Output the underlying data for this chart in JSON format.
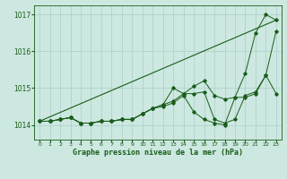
{
  "title": "Graphe pression niveau de la mer (hPa)",
  "background_color": "#cce8e0",
  "grid_color": "#aacfc8",
  "line_color": "#1a5c1a",
  "xlim": [
    -0.5,
    23.5
  ],
  "ylim": [
    1013.6,
    1017.25
  ],
  "xticks": [
    0,
    1,
    2,
    3,
    4,
    5,
    6,
    7,
    8,
    9,
    10,
    11,
    12,
    13,
    14,
    15,
    16,
    17,
    18,
    19,
    20,
    21,
    22,
    23
  ],
  "yticks": [
    1014,
    1015,
    1016,
    1017
  ],
  "series": [
    {
      "x": [
        0,
        1,
        2,
        3,
        4,
        5,
        6,
        7,
        8,
        9,
        10,
        11,
        12,
        13,
        14,
        15,
        16,
        17,
        18,
        19,
        20,
        21,
        22,
        23
      ],
      "y": [
        1014.1,
        1014.1,
        1014.15,
        1014.2,
        1014.05,
        1014.05,
        1014.1,
        1014.1,
        1014.15,
        1014.15,
        1014.3,
        1014.45,
        1014.55,
        1014.65,
        1014.85,
        1015.05,
        1015.2,
        1014.8,
        1014.7,
        1014.75,
        1015.4,
        1016.5,
        1017.0,
        1016.85
      ]
    },
    {
      "x": [
        0,
        1,
        2,
        3,
        4,
        5,
        6,
        7,
        8,
        9,
        10,
        11,
        12,
        13,
        14,
        15,
        16,
        17,
        18,
        19,
        20,
        21,
        22,
        23
      ],
      "y": [
        1014.1,
        1014.1,
        1014.15,
        1014.2,
        1014.05,
        1014.05,
        1014.1,
        1014.1,
        1014.15,
        1014.15,
        1014.3,
        1014.45,
        1014.55,
        1015.0,
        1014.85,
        1014.85,
        1014.9,
        1014.15,
        1014.05,
        1014.15,
        1014.8,
        1014.9,
        1015.35,
        1016.55
      ]
    },
    {
      "x": [
        0,
        1,
        2,
        3,
        4,
        5,
        6,
        7,
        8,
        9,
        10,
        11,
        12,
        13,
        14,
        15,
        16,
        17,
        18,
        19,
        20,
        21,
        22,
        23
      ],
      "y": [
        1014.1,
        1014.1,
        1014.15,
        1014.2,
        1014.05,
        1014.05,
        1014.1,
        1014.1,
        1014.15,
        1014.15,
        1014.3,
        1014.45,
        1014.5,
        1014.6,
        1014.8,
        1014.35,
        1014.15,
        1014.05,
        1014.0,
        1014.75,
        1014.75,
        1014.85,
        1015.35,
        1014.85
      ]
    },
    {
      "x": [
        0,
        23
      ],
      "y": [
        1014.1,
        1016.85
      ]
    }
  ]
}
